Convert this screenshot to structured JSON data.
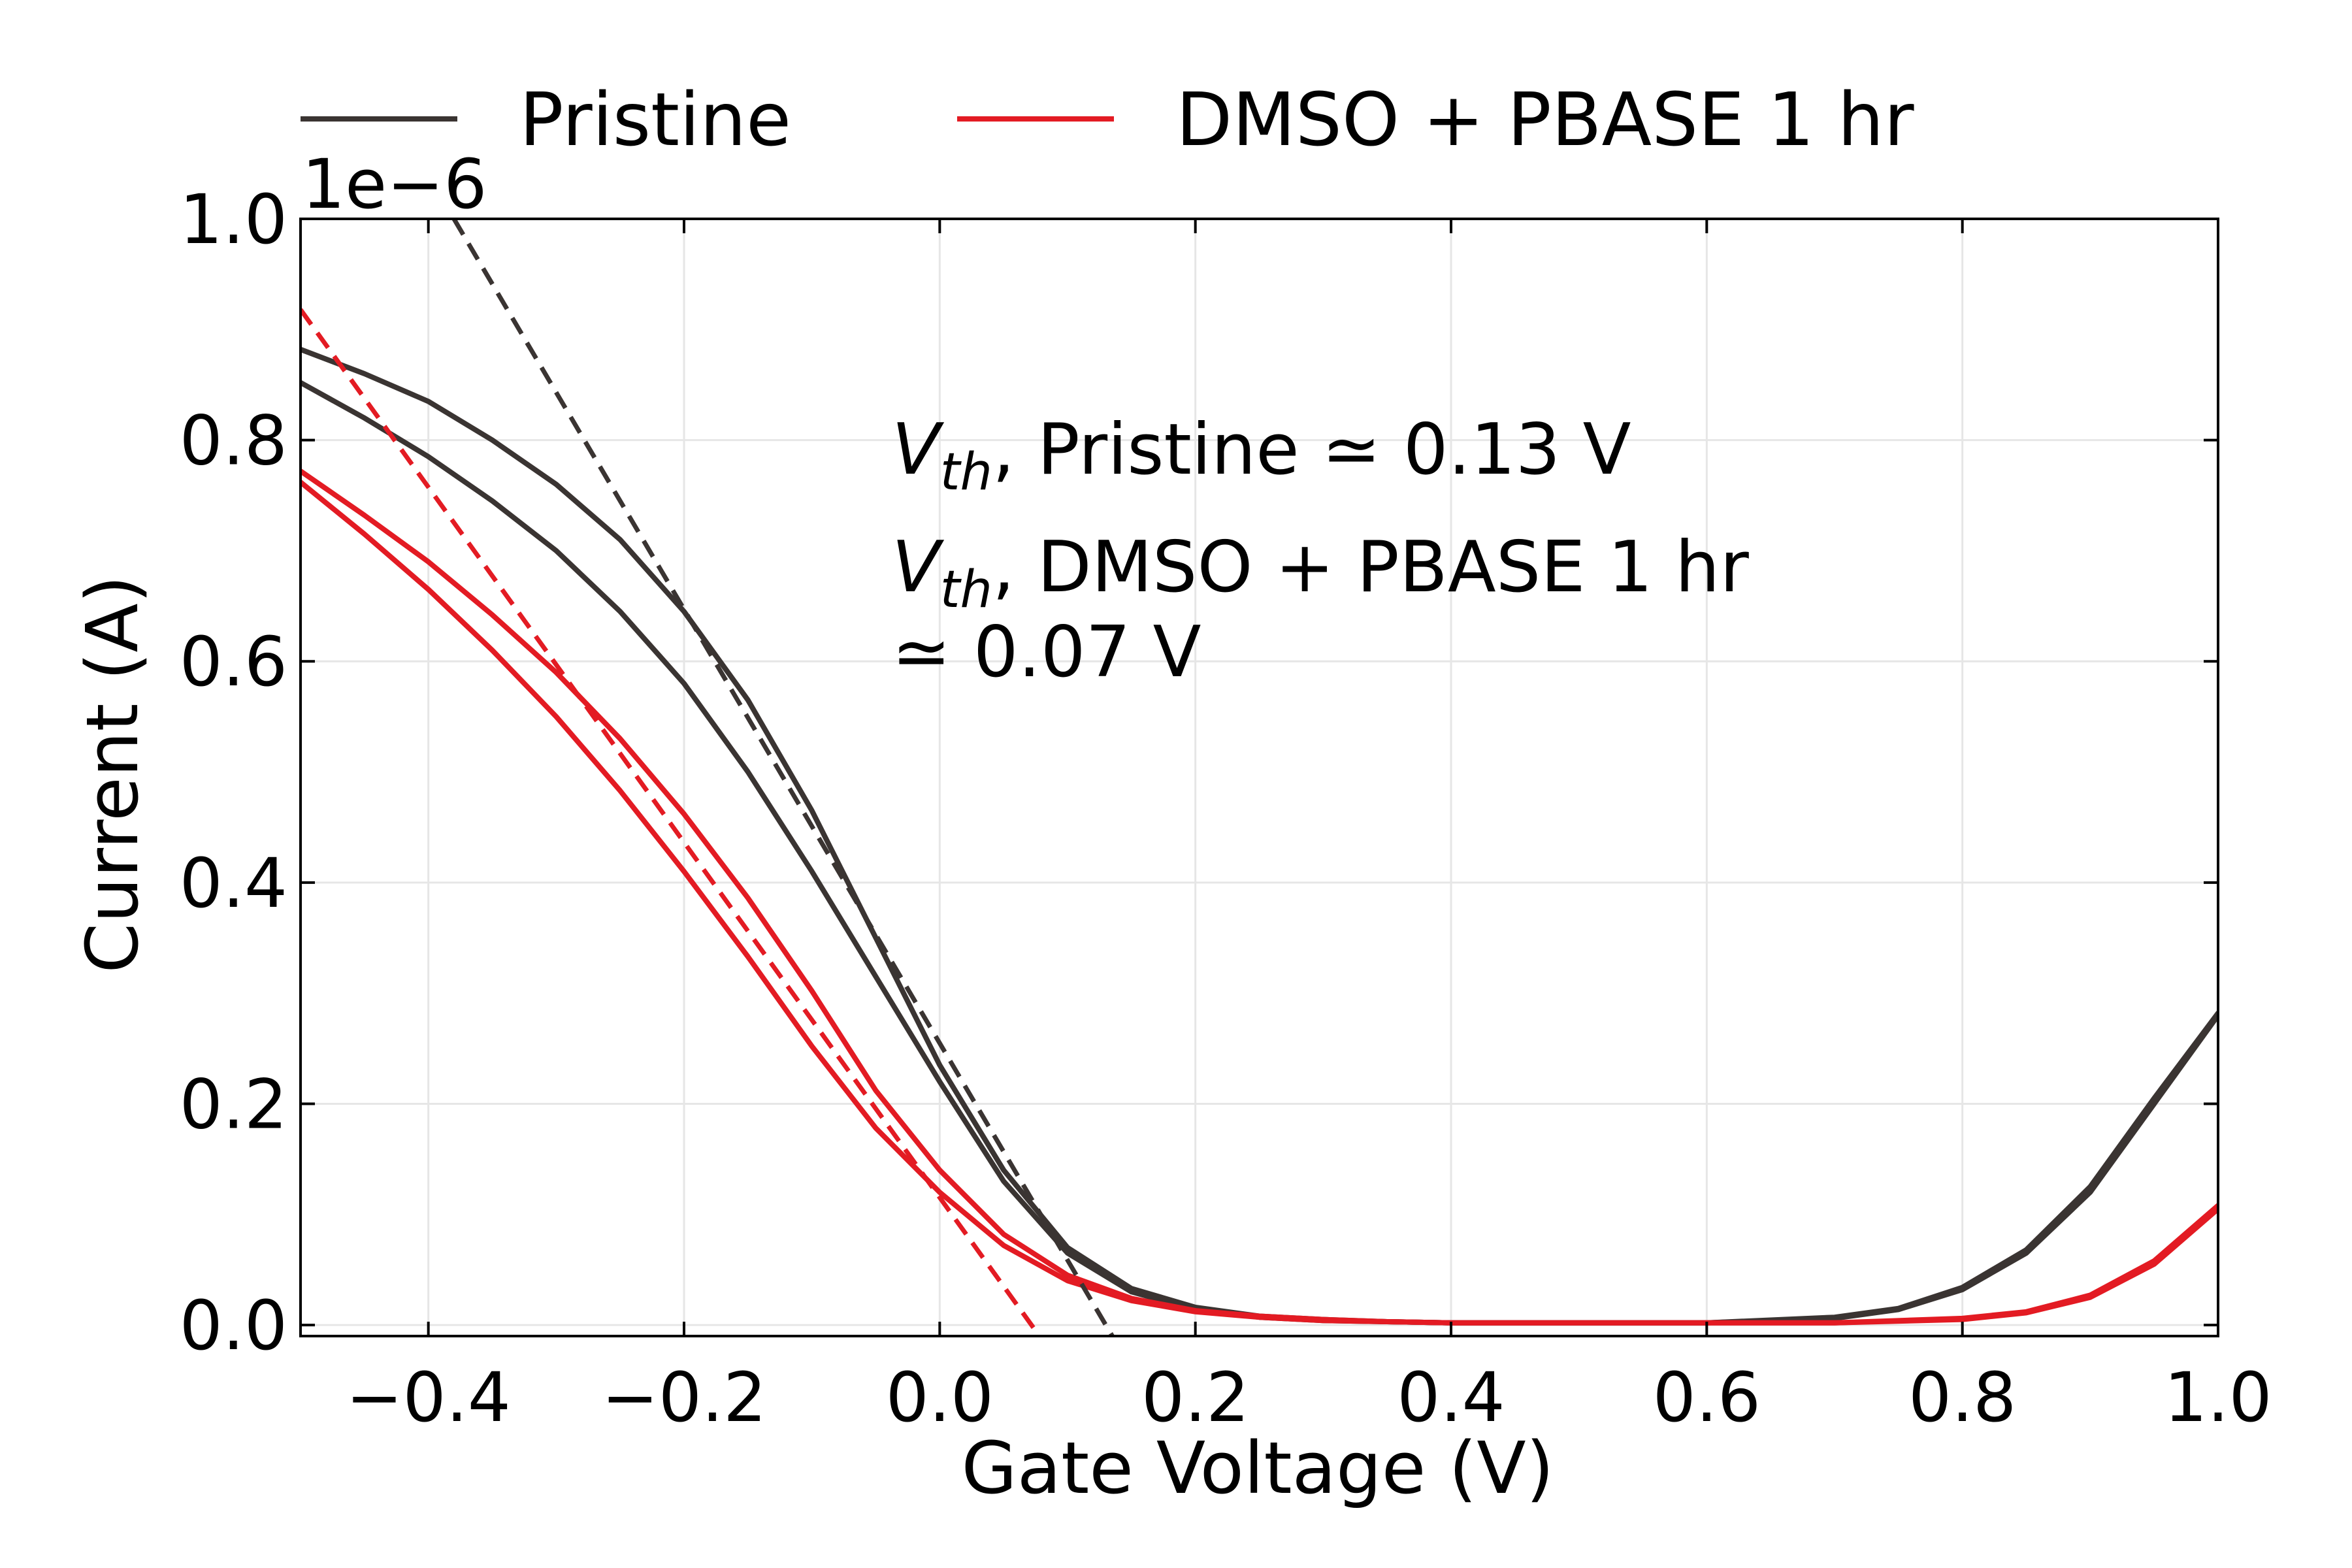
{
  "chart_data": {
    "type": "line",
    "xlabel": "Gate Voltage (V)",
    "ylabel": "Current (A)",
    "y_offset_label": "1e−6",
    "xlim": [
      -0.5,
      1.0
    ],
    "ylim": [
      -0.01,
      1.0
    ],
    "x_ticks": [
      -0.4,
      -0.2,
      0.0,
      0.2,
      0.4,
      0.6,
      0.8,
      1.0
    ],
    "x_tick_labels": [
      "−0.4",
      "−0.2",
      "0.0",
      "0.2",
      "0.4",
      "0.6",
      "0.8",
      "1.0"
    ],
    "y_ticks": [
      0.0,
      0.2,
      0.4,
      0.6,
      0.8,
      1.0
    ],
    "y_tick_labels": [
      "0.0",
      "0.2",
      "0.4",
      "0.6",
      "0.8",
      "1.0"
    ],
    "grid": true,
    "legend_position": "top",
    "series": [
      {
        "name": "Pristine",
        "color": "#3a3432",
        "style": "solid",
        "legend": true,
        "x": [
          -0.5,
          -0.45,
          -0.4,
          -0.35,
          -0.3,
          -0.25,
          -0.2,
          -0.15,
          -0.1,
          -0.05,
          0.0,
          0.05,
          0.1,
          0.15,
          0.2,
          0.25,
          0.3,
          0.35,
          0.4,
          0.5,
          0.6,
          0.7,
          0.75,
          0.8,
          0.85,
          0.9,
          0.95,
          1.0
        ],
        "y": [
          0.852,
          0.82,
          0.785,
          0.745,
          0.7,
          0.645,
          0.58,
          0.5,
          0.41,
          0.315,
          0.22,
          0.13,
          0.065,
          0.03,
          0.014,
          0.007,
          0.004,
          0.003,
          0.002,
          0.002,
          0.002,
          0.006,
          0.014,
          0.032,
          0.065,
          0.12,
          0.2,
          0.28
        ]
      },
      {
        "name": "",
        "color": "#3a3432",
        "style": "solid",
        "legend": false,
        "x": [
          -0.5,
          -0.45,
          -0.4,
          -0.35,
          -0.3,
          -0.25,
          -0.2,
          -0.15,
          -0.1,
          -0.05,
          0.0,
          0.05,
          0.1,
          0.15,
          0.2,
          0.25,
          0.3,
          0.35,
          0.4,
          0.5,
          0.6,
          0.7,
          0.75,
          0.8,
          0.85,
          0.9,
          0.95,
          1.0
        ],
        "y": [
          0.882,
          0.86,
          0.835,
          0.8,
          0.76,
          0.71,
          0.645,
          0.565,
          0.465,
          0.35,
          0.235,
          0.14,
          0.07,
          0.033,
          0.016,
          0.008,
          0.005,
          0.003,
          0.002,
          0.002,
          0.002,
          0.007,
          0.015,
          0.034,
          0.068,
          0.125,
          0.205,
          0.282
        ]
      },
      {
        "name": "DMSO + PBASE 1 hr",
        "color": "#e31b23",
        "style": "solid",
        "legend": true,
        "x": [
          -0.5,
          -0.45,
          -0.4,
          -0.35,
          -0.3,
          -0.25,
          -0.2,
          -0.15,
          -0.1,
          -0.05,
          0.0,
          0.05,
          0.1,
          0.15,
          0.2,
          0.25,
          0.3,
          0.35,
          0.4,
          0.5,
          0.6,
          0.7,
          0.8,
          0.85,
          0.9,
          0.95,
          1.0
        ],
        "y": [
          0.762,
          0.715,
          0.665,
          0.61,
          0.55,
          0.483,
          0.41,
          0.333,
          0.252,
          0.178,
          0.12,
          0.072,
          0.04,
          0.022,
          0.012,
          0.007,
          0.004,
          0.003,
          0.002,
          0.002,
          0.002,
          0.002,
          0.005,
          0.011,
          0.025,
          0.055,
          0.105
        ]
      },
      {
        "name": "",
        "color": "#e31b23",
        "style": "solid",
        "legend": false,
        "x": [
          -0.5,
          -0.45,
          -0.4,
          -0.35,
          -0.3,
          -0.25,
          -0.2,
          -0.15,
          -0.1,
          -0.05,
          0.0,
          0.05,
          0.1,
          0.15,
          0.2,
          0.25,
          0.3,
          0.35,
          0.4,
          0.5,
          0.6,
          0.7,
          0.8,
          0.85,
          0.9,
          0.95,
          1.0
        ],
        "y": [
          0.772,
          0.732,
          0.69,
          0.642,
          0.59,
          0.53,
          0.462,
          0.386,
          0.302,
          0.212,
          0.14,
          0.082,
          0.045,
          0.024,
          0.013,
          0.008,
          0.005,
          0.003,
          0.002,
          0.002,
          0.002,
          0.002,
          0.006,
          0.012,
          0.027,
          0.058,
          0.108
        ]
      },
      {
        "name": "",
        "color": "#3a3432",
        "style": "dashed",
        "legend": false,
        "x": [
          -0.38,
          0.135
        ],
        "y": [
          1.0,
          -0.01
        ]
      },
      {
        "name": "",
        "color": "#e31b23",
        "style": "dashed",
        "legend": false,
        "x": [
          -0.5,
          0.078
        ],
        "y": [
          0.918,
          -0.01
        ]
      }
    ],
    "annotations": [
      {
        "lines": [
          {
            "sym": "V",
            "sub": "th",
            "text": ", Pristine  ≃ 0.13 V"
          }
        ]
      },
      {
        "lines": [
          {
            "sym": "V",
            "sub": "th",
            "text": ", DMSO + PBASE 1 hr"
          },
          {
            "sym": "",
            "sub": "",
            "text": " ≃ 0.07 V"
          }
        ]
      }
    ]
  }
}
